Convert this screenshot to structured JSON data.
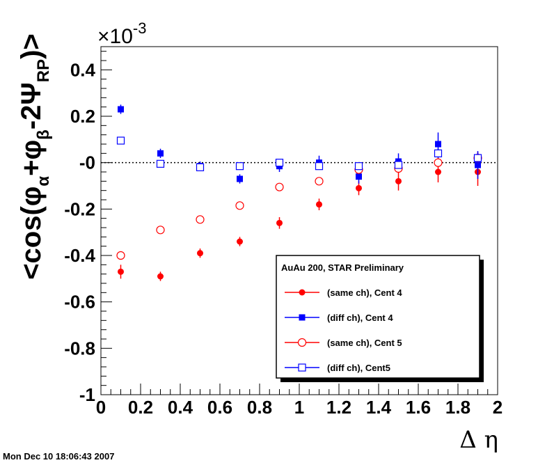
{
  "timestamp": "Mon Dec 10 18:06:43 2007",
  "chart_data": {
    "type": "scatter",
    "title": "",
    "xlabel": "Δ η",
    "ylabel": {
      "prefix": "<cos(φ",
      "sub1": "α",
      "mid1": "+φ",
      "sub2": "β",
      "mid2": "-2Ψ",
      "sub3": "RP",
      "suffix": ")>"
    },
    "y_multiplier": {
      "base": "×10",
      "exponent": "-3"
    },
    "xlim": [
      0,
      2
    ],
    "ylim": [
      -1,
      0.5
    ],
    "xticks": [
      0,
      0.2,
      0.4,
      0.6,
      0.8,
      1,
      1.2,
      1.4,
      1.6,
      1.8,
      2
    ],
    "xtick_labels": [
      "0",
      "0.2",
      "0.4",
      "0.6",
      "0.8",
      "1",
      "1.2",
      "1.4",
      "1.6",
      "1.8",
      "2"
    ],
    "yticks": [
      -1,
      -0.8,
      -0.6,
      -0.4,
      -0.2,
      0,
      0.2,
      0.4
    ],
    "ytick_labels": [
      "-1",
      "-0.8",
      "-0.6",
      "-0.4",
      "-0.2",
      "-0",
      "0.2",
      "0.4"
    ],
    "reference_line_y": 0,
    "legend": {
      "title": "AuAu 200, STAR Preliminary",
      "position": "bottom-right"
    },
    "series": [
      {
        "name": "(same ch), Cent 4",
        "color": "#ff0000",
        "marker": "filled-circle",
        "x": [
          0.1,
          0.3,
          0.5,
          0.7,
          0.9,
          1.1,
          1.3,
          1.5,
          1.7,
          1.9
        ],
        "y": [
          -0.47,
          -0.49,
          -0.39,
          -0.34,
          -0.26,
          -0.18,
          -0.11,
          -0.08,
          -0.04,
          -0.04
        ],
        "err": [
          0.03,
          0.02,
          0.02,
          0.02,
          0.025,
          0.025,
          0.03,
          0.04,
          0.045,
          0.06
        ]
      },
      {
        "name": "(diff ch), Cent 4",
        "color": "#0000ff",
        "marker": "filled-square",
        "x": [
          0.1,
          0.3,
          0.5,
          0.7,
          0.9,
          1.1,
          1.3,
          1.5,
          1.7,
          1.9
        ],
        "y": [
          0.23,
          0.04,
          -0.015,
          -0.07,
          -0.015,
          0.0,
          -0.06,
          0.005,
          0.08,
          -0.01
        ],
        "err": [
          0.02,
          0.02,
          0.02,
          0.02,
          0.025,
          0.03,
          0.03,
          0.035,
          0.05,
          0.06
        ]
      },
      {
        "name": "(same ch), Cent 5",
        "color": "#ff0000",
        "marker": "open-circle",
        "x": [
          0.1,
          0.3,
          0.5,
          0.7,
          0.9,
          1.1,
          1.3,
          1.5,
          1.7,
          1.9
        ],
        "y": [
          -0.4,
          -0.29,
          -0.245,
          -0.185,
          -0.105,
          -0.08,
          -0.03,
          -0.025,
          0.0,
          0.02
        ],
        "err": [
          0.01,
          0.008,
          0.008,
          0.008,
          0.008,
          0.01,
          0.012,
          0.015,
          0.02,
          0.025
        ]
      },
      {
        "name": "(diff ch), Cent5",
        "color": "#0000ff",
        "marker": "open-square",
        "x": [
          0.1,
          0.3,
          0.5,
          0.7,
          0.9,
          1.1,
          1.3,
          1.5,
          1.7,
          1.9
        ],
        "y": [
          0.095,
          -0.005,
          -0.02,
          -0.015,
          0.0,
          -0.015,
          -0.015,
          -0.01,
          0.04,
          0.02
        ],
        "err": [
          0.008,
          0.008,
          0.008,
          0.008,
          0.008,
          0.01,
          0.012,
          0.015,
          0.02,
          0.025
        ]
      }
    ]
  }
}
